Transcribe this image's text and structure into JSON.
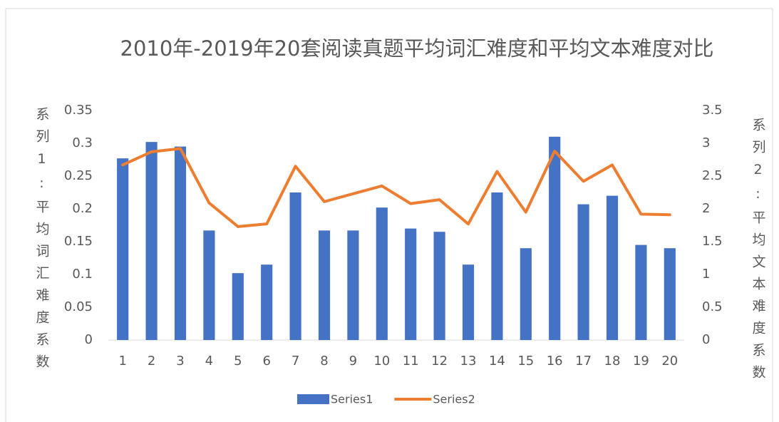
{
  "chart_data": {
    "type": "bar_line",
    "title": "2010年-2019年20套阅读真题平均词汇难度和平均文本难度对比",
    "y_label": "系列1:平均词汇难度系数",
    "y2_label": "系列2:平均文本难度系数",
    "categories": [
      "1",
      "2",
      "3",
      "4",
      "5",
      "6",
      "7",
      "8",
      "9",
      "10",
      "11",
      "12",
      "13",
      "14",
      "15",
      "16",
      "17",
      "18",
      "19",
      "20"
    ],
    "series": [
      {
        "name": "Series1",
        "type": "bar",
        "color": "#4472c4",
        "axis": "y",
        "values": [
          0.277,
          0.302,
          0.295,
          0.167,
          0.102,
          0.115,
          0.225,
          0.167,
          0.167,
          0.202,
          0.17,
          0.165,
          0.115,
          0.225,
          0.14,
          0.31,
          0.207,
          0.22,
          0.145,
          0.14
        ]
      },
      {
        "name": "Series2",
        "type": "line",
        "color": "#ed7d31",
        "axis": "y2",
        "values": [
          2.67,
          2.87,
          2.92,
          2.09,
          1.73,
          1.77,
          2.65,
          2.11,
          2.23,
          2.35,
          2.08,
          2.14,
          1.77,
          2.57,
          1.95,
          2.88,
          2.42,
          2.67,
          1.92,
          1.91
        ]
      }
    ],
    "ylim": [
      0,
      0.35
    ],
    "yticks": [
      0,
      0.05,
      0.1,
      0.15,
      0.2,
      0.25,
      0.3,
      0.35
    ],
    "y2lim": [
      0,
      3.5
    ],
    "y2ticks": [
      0,
      0.5,
      1,
      1.5,
      2,
      2.5,
      3,
      3.5
    ],
    "grid": false,
    "legend": "bottom"
  }
}
